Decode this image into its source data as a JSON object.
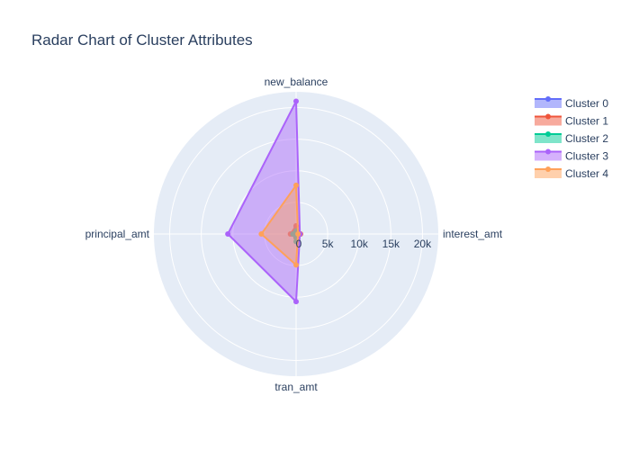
{
  "chart_data": {
    "type": "radar",
    "title": "Radar Chart of Cluster Attributes",
    "axes": [
      "interest_amt",
      "new_balance",
      "principal_amt",
      "tran_amt"
    ],
    "radial_ticks": [
      "0",
      "5k",
      "10k",
      "15k",
      "20k"
    ],
    "radial_tick_values": [
      0,
      5000,
      10000,
      15000,
      20000
    ],
    "rmax": 22500,
    "grid": true,
    "legend_position": "top-right",
    "series": [
      {
        "name": "Cluster 0",
        "color": "#636efa",
        "values": [
          400,
          1200,
          700,
          200
        ]
      },
      {
        "name": "Cluster 1",
        "color": "#ef553b",
        "values": [
          700,
          1300,
          900,
          600
        ]
      },
      {
        "name": "Cluster 2",
        "color": "#00cc96",
        "values": [
          50,
          500,
          500,
          1200
        ]
      },
      {
        "name": "Cluster 3",
        "color": "#ab63fa",
        "values": [
          600,
          21000,
          10800,
          10700
        ]
      },
      {
        "name": "Cluster 4",
        "color": "#ffa15a",
        "values": [
          300,
          7700,
          5500,
          4900
        ]
      }
    ]
  }
}
